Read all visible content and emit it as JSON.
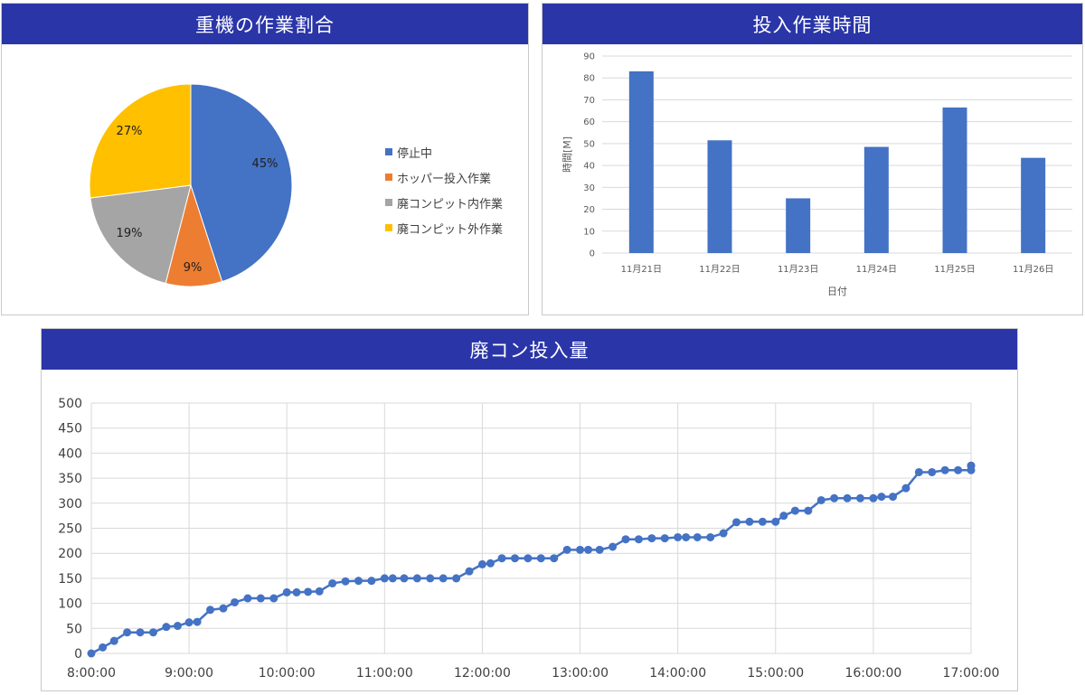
{
  "colors": {
    "header_bg": "#2a35a8",
    "blue": "#4472c4",
    "orange": "#ed7d31",
    "gray": "#a5a5a5",
    "yellow": "#ffc000",
    "grid": "#d9d9d9",
    "axis_text": "#595959"
  },
  "pie": {
    "header": "重機の作業割合",
    "legend": [
      "停止中",
      "ホッパー投入作業",
      "廃コンピット内作業",
      "廃コンピット外作業"
    ]
  },
  "bar": {
    "header": "投入作業時間"
  },
  "line": {
    "header": "廃コン投入量"
  },
  "chart_data": [
    {
      "type": "pie",
      "categories": [
        "停止中",
        "ホッパー投入作業",
        "廃コンピット内作業",
        "廃コンピット外作業"
      ],
      "values": [
        45,
        9,
        19,
        27
      ],
      "data_labels": [
        "45%",
        "9%",
        "19%",
        "27%"
      ],
      "legend_position": "right"
    },
    {
      "type": "bar",
      "categories": [
        "11月21日",
        "11月22日",
        "11月23日",
        "11月24日",
        "11月25日",
        "11月26日"
      ],
      "values": [
        83,
        51.5,
        25,
        48.5,
        66.5,
        43.5
      ],
      "xlabel": "日付",
      "ylabel": "時間[M]",
      "ylim": [
        0,
        90
      ],
      "yticks": [
        0,
        10,
        20,
        30,
        40,
        50,
        60,
        70,
        80,
        90
      ],
      "grid": true
    },
    {
      "type": "line",
      "xlim": [
        "8:00:00",
        "17:00:00"
      ],
      "xticks": [
        "8:00:00",
        "9:00:00",
        "10:00:00",
        "11:00:00",
        "12:00:00",
        "13:00:00",
        "14:00:00",
        "15:00:00",
        "16:00:00",
        "17:00:00"
      ],
      "ylim": [
        0,
        500
      ],
      "yticks": [
        0,
        50,
        100,
        150,
        200,
        250,
        300,
        350,
        400,
        450,
        500
      ],
      "grid": true,
      "points": [
        [
          "8:00:00",
          0
        ],
        [
          "8:07:00",
          12
        ],
        [
          "8:14:00",
          25
        ],
        [
          "8:22:00",
          42
        ],
        [
          "8:30:00",
          42
        ],
        [
          "8:38:00",
          42
        ],
        [
          "8:46:00",
          53
        ],
        [
          "8:53:00",
          55
        ],
        [
          "9:00:00",
          62
        ],
        [
          "9:05:00",
          63
        ],
        [
          "9:13:00",
          87
        ],
        [
          "9:21:00",
          90
        ],
        [
          "9:28:00",
          102
        ],
        [
          "9:36:00",
          110
        ],
        [
          "9:44:00",
          110
        ],
        [
          "9:52:00",
          110
        ],
        [
          "10:00:00",
          122
        ],
        [
          "10:06:00",
          122
        ],
        [
          "10:13:00",
          123
        ],
        [
          "10:20:00",
          124
        ],
        [
          "10:28:00",
          140
        ],
        [
          "10:36:00",
          144
        ],
        [
          "10:44:00",
          145
        ],
        [
          "10:52:00",
          145
        ],
        [
          "11:00:00",
          150
        ],
        [
          "11:05:00",
          150
        ],
        [
          "11:12:00",
          150
        ],
        [
          "11:20:00",
          150
        ],
        [
          "11:28:00",
          150
        ],
        [
          "11:36:00",
          150
        ],
        [
          "11:44:00",
          150
        ],
        [
          "11:52:00",
          164
        ],
        [
          "12:00:00",
          178
        ],
        [
          "12:05:00",
          180
        ],
        [
          "12:12:00",
          190
        ],
        [
          "12:20:00",
          190
        ],
        [
          "12:28:00",
          190
        ],
        [
          "12:36:00",
          190
        ],
        [
          "12:44:00",
          190
        ],
        [
          "12:52:00",
          207
        ],
        [
          "13:00:00",
          207
        ],
        [
          "13:05:00",
          207
        ],
        [
          "13:12:00",
          207
        ],
        [
          "13:20:00",
          213
        ],
        [
          "13:28:00",
          228
        ],
        [
          "13:36:00",
          228
        ],
        [
          "13:44:00",
          230
        ],
        [
          "13:52:00",
          230
        ],
        [
          "14:00:00",
          232
        ],
        [
          "14:05:00",
          232
        ],
        [
          "14:12:00",
          232
        ],
        [
          "14:20:00",
          232
        ],
        [
          "14:28:00",
          240
        ],
        [
          "14:36:00",
          262
        ],
        [
          "14:44:00",
          263
        ],
        [
          "14:52:00",
          263
        ],
        [
          "15:00:00",
          263
        ],
        [
          "15:05:00",
          275
        ],
        [
          "15:12:00",
          285
        ],
        [
          "15:20:00",
          285
        ],
        [
          "15:28:00",
          306
        ],
        [
          "15:36:00",
          310
        ],
        [
          "15:44:00",
          310
        ],
        [
          "15:52:00",
          310
        ],
        [
          "16:00:00",
          310
        ],
        [
          "16:05:00",
          313
        ],
        [
          "16:12:00",
          313
        ],
        [
          "16:20:00",
          330
        ],
        [
          "16:28:00",
          362
        ],
        [
          "16:36:00",
          362
        ],
        [
          "16:44:00",
          366
        ],
        [
          "16:52:00",
          366
        ],
        [
          "17:00:00",
          366
        ],
        [
          "17:05:00",
          375
        ],
        [
          "17:12:00",
          375
        ]
      ]
    }
  ]
}
